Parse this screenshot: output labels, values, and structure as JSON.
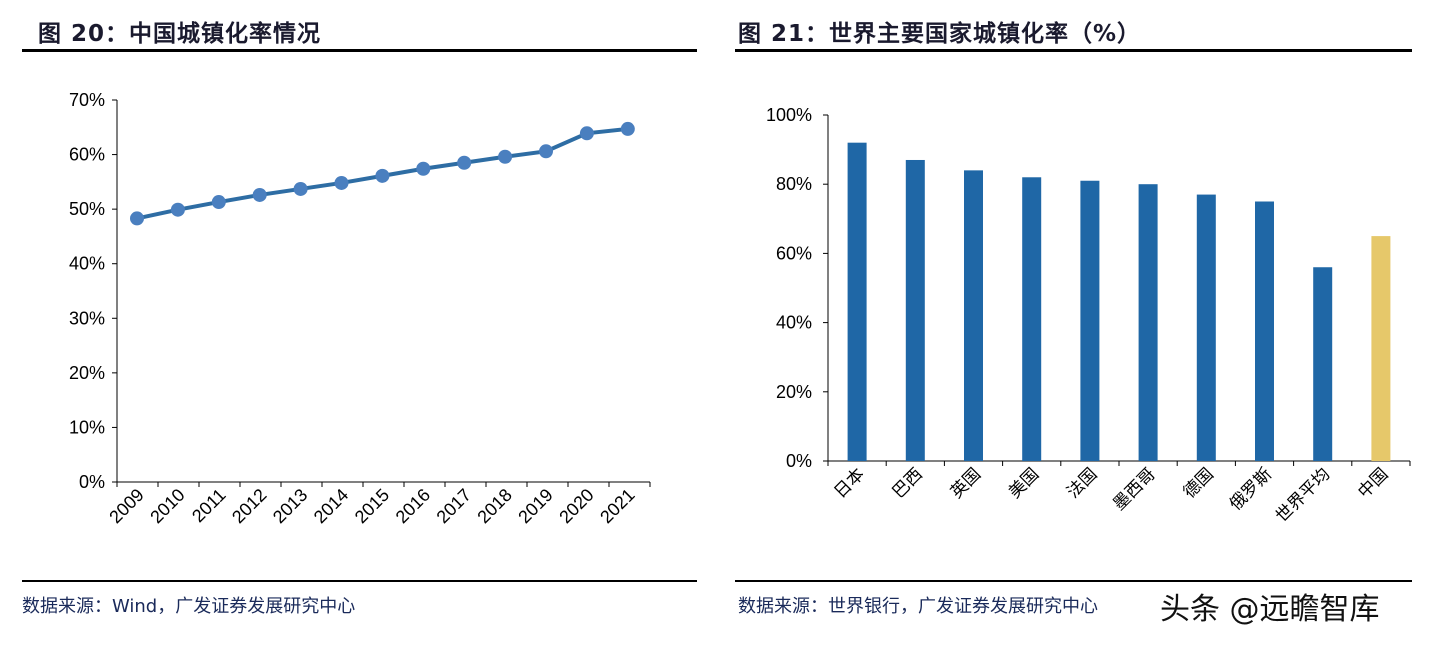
{
  "chart_data": [
    {
      "type": "line",
      "title": "图 20：中国城镇化率情况",
      "x": [
        "2009",
        "2010",
        "2011",
        "2012",
        "2013",
        "2014",
        "2015",
        "2016",
        "2017",
        "2018",
        "2019",
        "2020",
        "2021"
      ],
      "series": [
        {
          "name": "城镇化率",
          "values": [
            48.3,
            49.9,
            51.3,
            52.6,
            53.7,
            54.8,
            56.1,
            57.4,
            58.5,
            59.6,
            60.6,
            63.9,
            64.7
          ],
          "color": "#2e6da4"
        }
      ],
      "yticks": [
        "0%",
        "10%",
        "20%",
        "30%",
        "40%",
        "50%",
        "60%",
        "70%"
      ],
      "ylim": [
        0,
        70
      ],
      "source": "数据来源：Wind，广发证券发展研究中心"
    },
    {
      "type": "bar",
      "title": "图 21：世界主要国家城镇化率（%）",
      "categories": [
        "日本",
        "巴西",
        "英国",
        "美国",
        "法国",
        "墨西哥",
        "德国",
        "俄罗斯",
        "世界平均",
        "中国"
      ],
      "values": [
        92,
        87,
        84,
        82,
        81,
        80,
        77,
        75,
        56,
        65
      ],
      "colors": [
        "#1f67a6",
        "#1f67a6",
        "#1f67a6",
        "#1f67a6",
        "#1f67a6",
        "#1f67a6",
        "#1f67a6",
        "#1f67a6",
        "#1f67a6",
        "#e6c86a"
      ],
      "yticks": [
        "0%",
        "20%",
        "40%",
        "60%",
        "80%",
        "100%"
      ],
      "ylim": [
        0,
        100
      ],
      "source": "数据来源：世界银行，广发证券发展研究中心"
    }
  ],
  "watermark": "头条 @远瞻智库"
}
